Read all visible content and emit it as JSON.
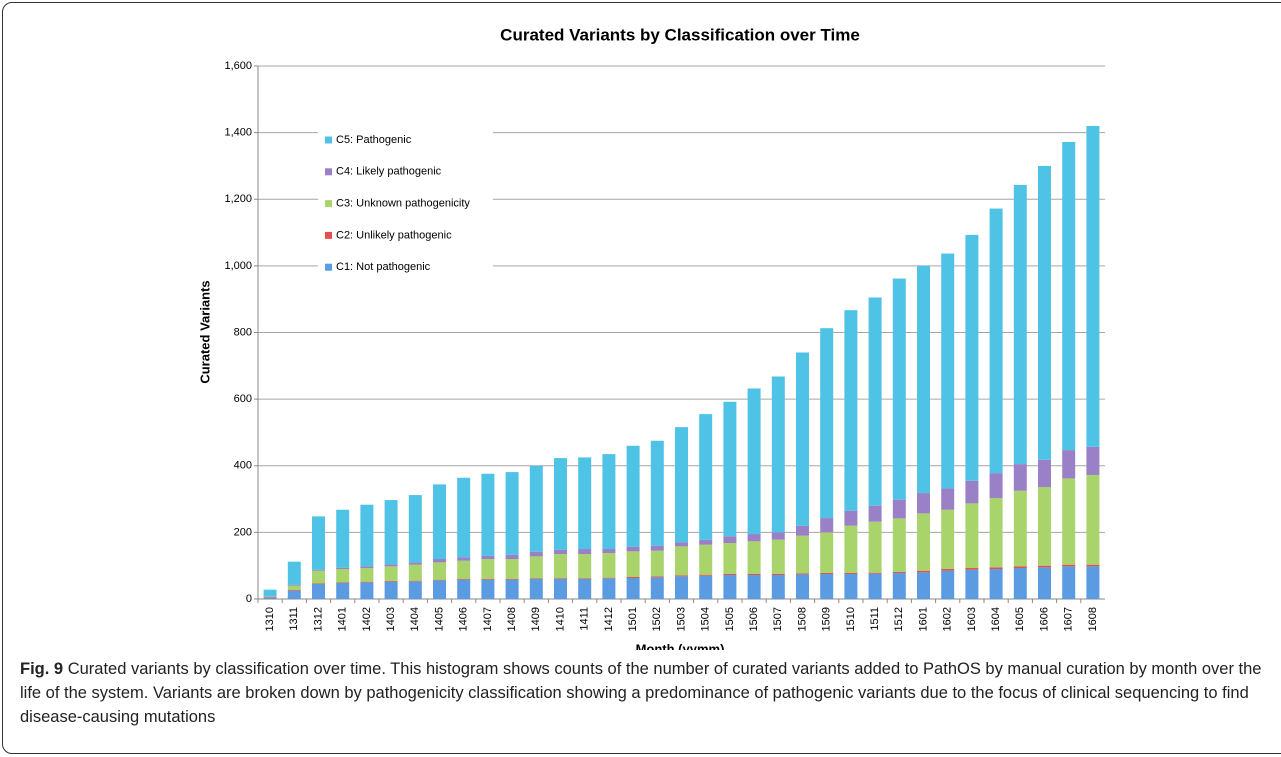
{
  "chart_data": {
    "type": "stacked-bar",
    "title": "Curated Variants by Classification over Time",
    "x_label": "Month (yymm)",
    "y_label": "Curated Variants",
    "categories": [
      "1310",
      "1311",
      "1312",
      "1401",
      "1402",
      "1403",
      "1404",
      "1405",
      "1406",
      "1407",
      "1408",
      "1409",
      "1410",
      "1411",
      "1412",
      "1501",
      "1502",
      "1503",
      "1504",
      "1505",
      "1506",
      "1507",
      "1508",
      "1509",
      "1510",
      "1511",
      "1512",
      "1601",
      "1602",
      "1603",
      "1604",
      "1605",
      "1606",
      "1607",
      "1608"
    ],
    "series": [
      {
        "name": "C1: Not pathogenic",
        "color": "#5b9be2",
        "values": [
          5,
          25,
          45,
          48,
          50,
          52,
          53,
          56,
          58,
          58,
          58,
          60,
          60,
          60,
          62,
          63,
          65,
          68,
          70,
          72,
          72,
          72,
          74,
          75,
          75,
          76,
          78,
          80,
          85,
          88,
          90,
          93,
          95,
          98,
          98
        ]
      },
      {
        "name": "C2: Unlikely pathogenic",
        "color": "#e4504e",
        "values": [
          1,
          2,
          2,
          2,
          2,
          2,
          2,
          2,
          2,
          2,
          2,
          2,
          2,
          2,
          2,
          3,
          3,
          3,
          3,
          3,
          3,
          3,
          3,
          3,
          3,
          3,
          3,
          5,
          5,
          5,
          5,
          5,
          5,
          5,
          5
        ]
      },
      {
        "name": "C3: Unknown pathogenicity",
        "color": "#a9d46b",
        "values": [
          2,
          13,
          38,
          40,
          41,
          44,
          48,
          52,
          55,
          60,
          60,
          66,
          73,
          73,
          74,
          77,
          77,
          87,
          90,
          93,
          98,
          103,
          113,
          122,
          142,
          153,
          161,
          172,
          178,
          194,
          208,
          227,
          236,
          259,
          269
        ]
      },
      {
        "name": "C4: Likely pathogenic",
        "color": "#9a80c6",
        "values": [
          1,
          3,
          3,
          4,
          5,
          6,
          7,
          10,
          10,
          10,
          13,
          14,
          13,
          15,
          12,
          14,
          15,
          12,
          15,
          20,
          22,
          22,
          30,
          43,
          45,
          48,
          56,
          61,
          64,
          68,
          75,
          80,
          82,
          85,
          85
        ]
      },
      {
        "name": "C5: Pathogenic",
        "color": "#4fc3e6",
        "values": [
          19,
          69,
          160,
          174,
          185,
          193,
          202,
          224,
          239,
          246,
          248,
          258,
          275,
          275,
          285,
          303,
          315,
          346,
          377,
          404,
          437,
          468,
          520,
          570,
          602,
          625,
          664,
          682,
          705,
          738,
          794,
          838,
          882,
          925,
          963
        ]
      }
    ],
    "ylim": [
      0,
      1600
    ],
    "yticks": [
      0,
      200,
      400,
      600,
      800,
      {
        "value": 1000,
        "label": "1,000"
      },
      {
        "value": 1200,
        "label": "1,200"
      },
      {
        "value": 1400,
        "label": "1,400"
      },
      {
        "value": 1600,
        "label": "1,600"
      }
    ],
    "grid": true,
    "legend": "top-left"
  },
  "caption": {
    "label": "Fig. 9",
    "text": "Curated variants by classification over time. This histogram shows counts of the number of curated variants added to PathOS by manual curation by month over the life of the system. Variants are broken down by pathogenicity classification showing a predominance of pathogenic variants due to the focus of clinical sequencing to find disease-causing mutations"
  }
}
